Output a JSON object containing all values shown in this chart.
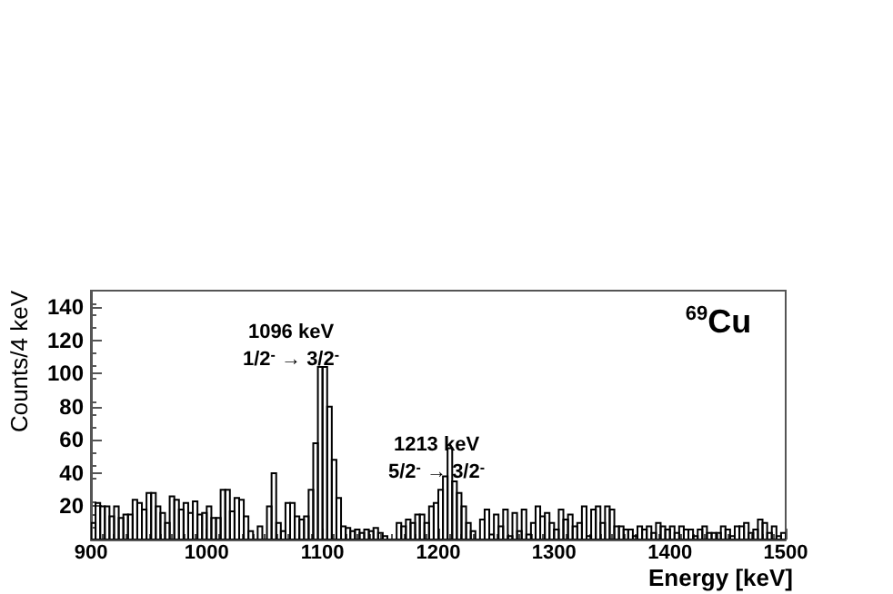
{
  "chart_data": {
    "type": "histogram",
    "xlabel": "Energy [keV]",
    "ylabel": "Counts/4 keV",
    "bins": [
      900,
      904,
      908,
      912,
      916,
      920,
      924,
      928,
      932,
      936,
      940,
      944,
      948,
      952,
      956,
      960,
      964,
      968,
      972,
      976,
      980,
      984,
      988,
      992,
      996,
      1000,
      1004,
      1008,
      1012,
      1016,
      1020,
      1024,
      1028,
      1032,
      1036,
      1040,
      1044,
      1048,
      1052,
      1056,
      1060,
      1064,
      1068,
      1072,
      1076,
      1080,
      1084,
      1088,
      1092,
      1096,
      1100,
      1104,
      1108,
      1112,
      1116,
      1120,
      1124,
      1128,
      1132,
      1136,
      1140,
      1144,
      1148,
      1152,
      1156,
      1160,
      1164,
      1168,
      1172,
      1176,
      1180,
      1184,
      1188,
      1192,
      1196,
      1200,
      1204,
      1208,
      1212,
      1216,
      1220,
      1224,
      1228,
      1232,
      1236,
      1240,
      1244,
      1248,
      1252,
      1256,
      1260,
      1264,
      1268,
      1272,
      1276,
      1280,
      1284,
      1288,
      1292,
      1296,
      1300,
      1304,
      1308,
      1312,
      1316,
      1320,
      1324,
      1328,
      1332,
      1336,
      1340,
      1344,
      1348,
      1352,
      1356,
      1360,
      1364,
      1368,
      1372,
      1376,
      1380,
      1384,
      1388,
      1392,
      1396,
      1400,
      1404,
      1408,
      1412,
      1416,
      1420,
      1424,
      1428,
      1432,
      1436,
      1440,
      1444,
      1448,
      1452,
      1456,
      1460,
      1464,
      1468,
      1472,
      1476,
      1480,
      1484,
      1488,
      1492,
      1496,
      1500
    ],
    "values": [
      10,
      22,
      20,
      20,
      14,
      20,
      13,
      15,
      15,
      24,
      22,
      18,
      28,
      28,
      20,
      16,
      10,
      26,
      24,
      18,
      22,
      16,
      23,
      15,
      16,
      20,
      13,
      13,
      30,
      30,
      17,
      25,
      24,
      14,
      5,
      0,
      8,
      0,
      20,
      40,
      10,
      5,
      22,
      22,
      14,
      12,
      14,
      30,
      58,
      104,
      104,
      80,
      48,
      25,
      8,
      7,
      5,
      6,
      4,
      6,
      5,
      7,
      4,
      2,
      0,
      0,
      10,
      8,
      12,
      10,
      15,
      15,
      10,
      20,
      22,
      30,
      38,
      55,
      35,
      28,
      20,
      10,
      5,
      0,
      12,
      18,
      3,
      15,
      8,
      18,
      2,
      16,
      5,
      18,
      3,
      10,
      20,
      14,
      16,
      10,
      6,
      18,
      12,
      15,
      8,
      10,
      20,
      2,
      18,
      20,
      10,
      20,
      18,
      8,
      8,
      6,
      6,
      2,
      8,
      6,
      8,
      4,
      10,
      8,
      6,
      8,
      4,
      8,
      6,
      6,
      2,
      6,
      8,
      4,
      4,
      4,
      8,
      6,
      2,
      8,
      8,
      10,
      4,
      6,
      12,
      10,
      4,
      8,
      2,
      4
    ],
    "color": "#000000",
    "xlim": [
      900,
      1500
    ],
    "xticks": [
      900,
      1000,
      1100,
      1200,
      1300,
      1400,
      1500
    ],
    "ylim": [
      0,
      150
    ],
    "yticks": [
      20,
      40,
      60,
      80,
      100,
      120,
      140
    ],
    "grid": false,
    "annotations": [
      "1096 keV",
      "1/2$^{-}$ → 3/2$^{-}$",
      "1213 keV",
      "5/2$^{-}$ → 3/2$^{-}$",
      "$^{69}$Cu"
    ]
  }
}
